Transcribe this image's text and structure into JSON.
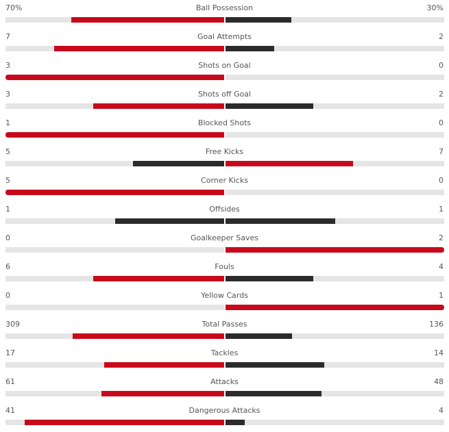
{
  "colors": {
    "leader": "#c8091b",
    "trailer": "#2b2b2b",
    "track": "#e5e5e5"
  },
  "stats": [
    {
      "label": "Ball Possession",
      "home": "70%",
      "away": "30%",
      "home_value": 70,
      "away_value": 30
    },
    {
      "label": "Goal Attempts",
      "home": "7",
      "away": "2",
      "home_value": 7,
      "away_value": 2
    },
    {
      "label": "Shots on Goal",
      "home": "3",
      "away": "0",
      "home_value": 3,
      "away_value": 0
    },
    {
      "label": "Shots off Goal",
      "home": "3",
      "away": "2",
      "home_value": 3,
      "away_value": 2
    },
    {
      "label": "Blocked Shots",
      "home": "1",
      "away": "0",
      "home_value": 1,
      "away_value": 0
    },
    {
      "label": "Free Kicks",
      "home": "5",
      "away": "7",
      "home_value": 5,
      "away_value": 7
    },
    {
      "label": "Corner Kicks",
      "home": "5",
      "away": "0",
      "home_value": 5,
      "away_value": 0
    },
    {
      "label": "Offsides",
      "home": "1",
      "away": "1",
      "home_value": 1,
      "away_value": 1
    },
    {
      "label": "Goalkeeper Saves",
      "home": "0",
      "away": "2",
      "home_value": 0,
      "away_value": 2
    },
    {
      "label": "Fouls",
      "home": "6",
      "away": "4",
      "home_value": 6,
      "away_value": 4
    },
    {
      "label": "Yellow Cards",
      "home": "0",
      "away": "1",
      "home_value": 0,
      "away_value": 1
    },
    {
      "label": "Total Passes",
      "home": "309",
      "away": "136",
      "home_value": 309,
      "away_value": 136
    },
    {
      "label": "Tackles",
      "home": "17",
      "away": "14",
      "home_value": 17,
      "away_value": 14
    },
    {
      "label": "Attacks",
      "home": "61",
      "away": "48",
      "home_value": 61,
      "away_value": 48
    },
    {
      "label": "Dangerous Attacks",
      "home": "41",
      "away": "4",
      "home_value": 41,
      "away_value": 4
    }
  ]
}
